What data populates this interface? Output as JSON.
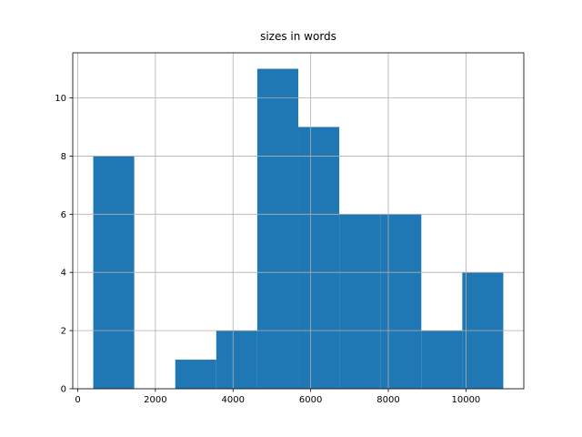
{
  "chart_data": {
    "type": "histogram",
    "title": "sizes in words",
    "bins": [
      399,
      1455,
      2512,
      3568,
      4624,
      5681,
      6737,
      7793,
      8850,
      9906,
      10962
    ],
    "values": [
      8,
      0,
      1,
      2,
      11,
      9,
      6,
      6,
      2,
      4
    ],
    "color": "#1f77b4",
    "xlim": [
      -129,
      11490
    ],
    "xticks": [
      0,
      2000,
      4000,
      6000,
      8000,
      10000
    ],
    "ylim": [
      0,
      11.55
    ],
    "yticks": [
      0,
      2,
      4,
      6,
      8,
      10
    ],
    "grid": true
  }
}
